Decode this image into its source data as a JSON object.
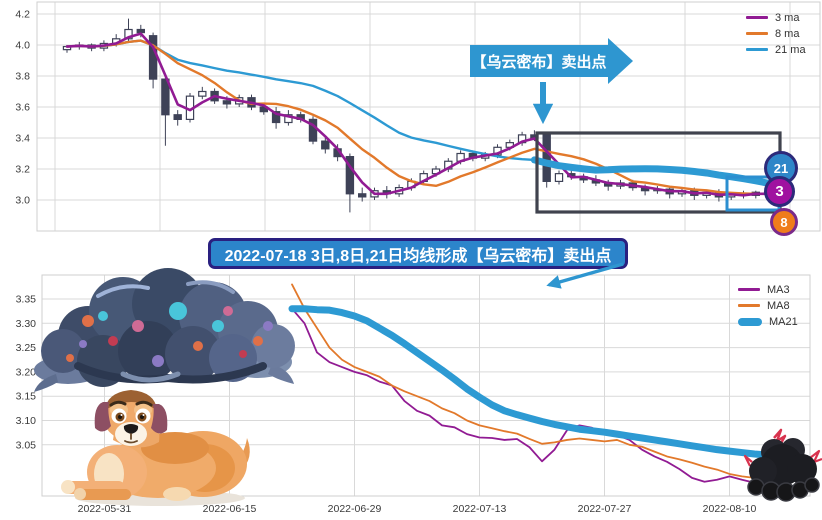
{
  "colors": {
    "ma3": "#911b93",
    "ma8": "#e2792b",
    "ma21": "#2d9ad3",
    "candle_dark": "#3e4257",
    "banner_blue": "#2e96d0",
    "caption_blue": "#2c85cb",
    "caption_border": "#2a2080",
    "pattern_box": "#40434e",
    "zoom_box": "#2c8fd0",
    "badge21_fill": "#2e86c8",
    "badge3_fill": "#a011a0",
    "badge8_fill": "#ef7c1b",
    "grid": "#d9d9d9"
  },
  "annotations": {
    "sell_banner": "【乌云密布】卖出点",
    "caption": "2022-07-18 3日,8日,21日均线形成【乌云密布】卖出点",
    "badges": [
      {
        "label": "21"
      },
      {
        "label": "3"
      },
      {
        "label": "8"
      }
    ]
  },
  "chart_data": [
    {
      "type": "candlestick",
      "title": "",
      "legend": [
        "3 ma",
        "8 ma",
        "21 ma"
      ],
      "legend_position": "top-right",
      "grid": true,
      "ma_periods": [
        3,
        8,
        21
      ],
      "series_colors": [
        "#911b93",
        "#e2792b",
        "#2d9ad3"
      ],
      "ylim": [
        2.8,
        4.29
      ],
      "y_ticks": [
        4.2,
        4.0,
        3.8,
        3.6,
        3.4,
        3.2,
        3.0
      ],
      "y_tick_labels": [
        "4.2",
        "4.0",
        "3.8",
        "3.6",
        "3.4",
        "3.2",
        "3.0"
      ],
      "candles": {
        "open": [
          3.97,
          3.99,
          4.0,
          3.98,
          4.01,
          4.04,
          4.1,
          4.06,
          3.78,
          3.55,
          3.52,
          3.67,
          3.7,
          3.64,
          3.62,
          3.66,
          3.6,
          3.57,
          3.5,
          3.55,
          3.52,
          3.38,
          3.33,
          3.28,
          3.04,
          3.02,
          3.06,
          3.04,
          3.08,
          3.12,
          3.17,
          3.2,
          3.25,
          3.3,
          3.27,
          3.29,
          3.34,
          3.37,
          3.42,
          3.42,
          3.12,
          3.17,
          3.15,
          3.13,
          3.11,
          3.09,
          3.11,
          3.08,
          3.06,
          3.07,
          3.04,
          3.06,
          3.03,
          3.05,
          3.02,
          3.04,
          3.03,
          3.05
        ],
        "high": [
          4.0,
          4.02,
          4.01,
          4.03,
          4.07,
          4.17,
          4.13,
          4.08,
          3.8,
          3.58,
          3.69,
          3.73,
          3.72,
          3.67,
          3.68,
          3.68,
          3.62,
          3.6,
          3.58,
          3.57,
          3.54,
          3.4,
          3.36,
          3.3,
          3.08,
          3.08,
          3.09,
          3.1,
          3.14,
          3.19,
          3.22,
          3.27,
          3.32,
          3.32,
          3.31,
          3.36,
          3.39,
          3.44,
          3.45,
          3.43,
          3.19,
          3.2,
          3.17,
          3.16,
          3.13,
          3.13,
          3.13,
          3.1,
          3.09,
          3.09,
          3.08,
          3.08,
          3.06,
          3.07,
          3.05,
          3.06,
          3.06,
          3.07
        ],
        "low": [
          3.95,
          3.97,
          3.96,
          3.96,
          3.99,
          4.02,
          4.05,
          3.72,
          3.35,
          3.48,
          3.5,
          3.65,
          3.62,
          3.59,
          3.6,
          3.58,
          3.55,
          3.46,
          3.48,
          3.5,
          3.36,
          3.3,
          3.25,
          2.92,
          2.99,
          3.0,
          3.01,
          3.02,
          3.06,
          3.1,
          3.15,
          3.18,
          3.23,
          3.25,
          3.25,
          3.27,
          3.32,
          3.35,
          3.38,
          3.08,
          3.1,
          3.13,
          3.11,
          3.09,
          3.06,
          3.07,
          3.06,
          3.03,
          3.04,
          3.01,
          3.02,
          3.0,
          3.01,
          2.99,
          3.0,
          3.01,
          3.01,
          3.02
        ],
        "close": [
          3.99,
          4.0,
          3.98,
          4.01,
          4.04,
          4.1,
          4.08,
          3.78,
          3.55,
          3.52,
          3.67,
          3.7,
          3.64,
          3.62,
          3.66,
          3.6,
          3.57,
          3.5,
          3.55,
          3.52,
          3.38,
          3.33,
          3.28,
          3.04,
          3.02,
          3.06,
          3.04,
          3.08,
          3.12,
          3.17,
          3.2,
          3.25,
          3.3,
          3.27,
          3.29,
          3.34,
          3.37,
          3.42,
          3.4,
          3.12,
          3.17,
          3.15,
          3.13,
          3.11,
          3.09,
          3.11,
          3.08,
          3.06,
          3.07,
          3.04,
          3.06,
          3.03,
          3.05,
          3.02,
          3.04,
          3.03,
          3.05,
          3.04
        ]
      },
      "highlight_21ma_from_index": 38
    },
    {
      "type": "line",
      "title": "",
      "grid": true,
      "legend_position": "top-right",
      "x_tick_labels": [
        "2022-05-31",
        "2022-06-15",
        "2022-06-29",
        "2022-07-13",
        "2022-07-27",
        "2022-08-10"
      ],
      "ylim": [
        2.95,
        3.4
      ],
      "y_ticks": [
        3.35,
        3.3,
        3.25,
        3.2,
        3.15,
        3.1,
        3.05
      ],
      "y_tick_labels": [
        "3.35",
        "3.30",
        "3.25",
        "3.20",
        "3.15",
        "3.10",
        "3.05"
      ],
      "series": [
        {
          "name": "MA3",
          "color": "#911b93",
          "width": 1.8,
          "start_index": 16,
          "values": [
            3.33,
            3.3,
            3.24,
            3.22,
            3.21,
            3.2,
            3.193,
            3.18,
            3.172,
            3.14,
            3.12,
            3.11,
            3.09,
            3.086,
            3.072,
            3.065,
            3.064,
            3.06,
            3.062,
            3.045,
            3.016,
            3.04,
            3.08,
            3.09,
            3.085,
            3.072,
            3.07,
            3.06,
            3.04,
            3.026,
            3.015,
            3.0,
            2.982,
            2.974,
            2.978,
            2.985,
            2.978,
            2.972,
            2.978
          ]
        },
        {
          "name": "MA8",
          "color": "#e2792b",
          "width": 1.8,
          "start_index": 16,
          "values": [
            3.38,
            3.33,
            3.29,
            3.25,
            3.225,
            3.21,
            3.2,
            3.19,
            3.172,
            3.16,
            3.15,
            3.14,
            3.125,
            3.115,
            3.1,
            3.09,
            3.084,
            3.078,
            3.073,
            3.062,
            3.052,
            3.055,
            3.06,
            3.063,
            3.06,
            3.057,
            3.06,
            3.05,
            3.046,
            3.036,
            3.026,
            3.02,
            3.013,
            3.005,
            2.999,
            2.99,
            2.985,
            2.982,
            2.98
          ]
        },
        {
          "name": "MA21",
          "color": "#2d9ad3",
          "width": 7,
          "start_index": 16,
          "values": [
            3.33,
            3.33,
            3.328,
            3.327,
            3.322,
            3.315,
            3.305,
            3.29,
            3.275,
            3.258,
            3.24,
            3.222,
            3.204,
            3.185,
            3.165,
            3.148,
            3.132,
            3.12,
            3.112,
            3.105,
            3.098,
            3.092,
            3.087,
            3.082,
            3.079,
            3.076,
            3.072,
            3.068,
            3.064,
            3.06,
            3.056,
            3.052,
            3.048,
            3.044,
            3.04,
            3.037,
            3.034,
            3.031,
            3.029
          ]
        }
      ]
    }
  ]
}
